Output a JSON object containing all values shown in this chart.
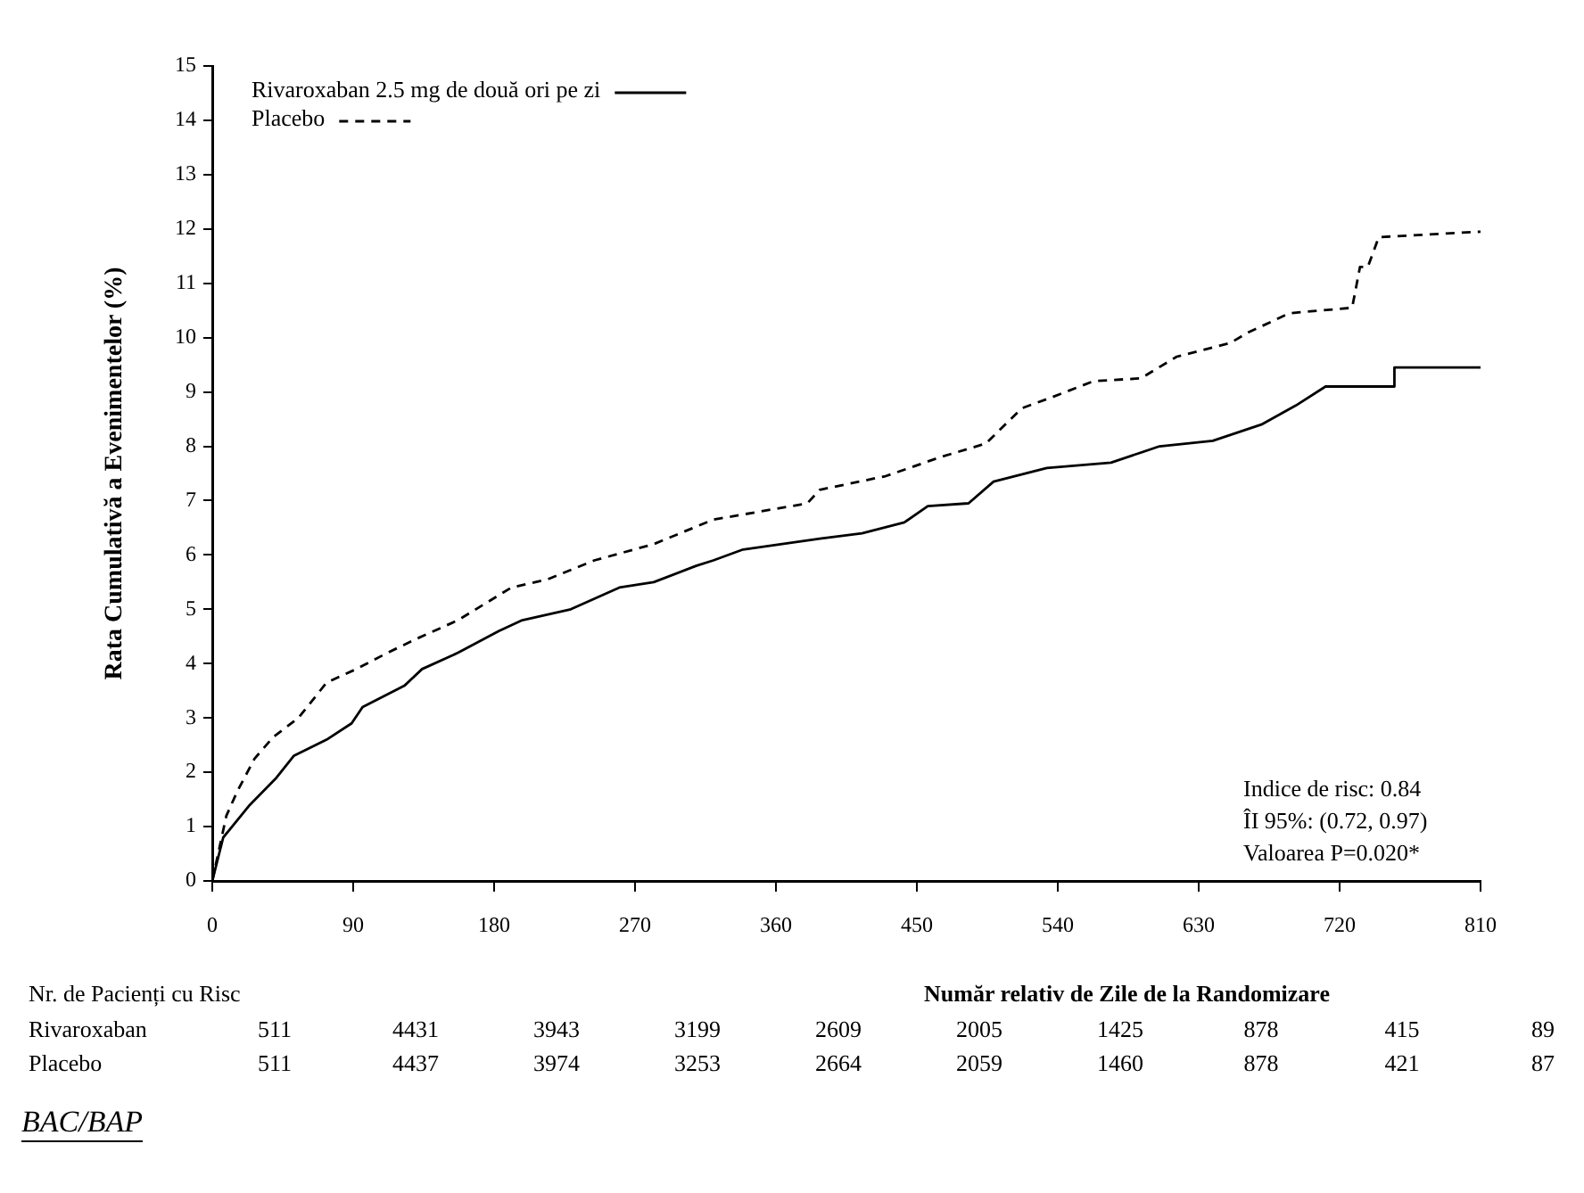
{
  "chart_data": {
    "type": "line",
    "ylabel": "Rata Cumulativă a Evenimentelor (%)",
    "xlabel": "Număr relativ de Zile de la Randomizare",
    "xlim": [
      0,
      810
    ],
    "xticks": [
      0,
      90,
      180,
      270,
      360,
      450,
      540,
      630,
      720,
      810
    ],
    "ylim": [
      0,
      15
    ],
    "yticks": [
      0,
      1,
      2,
      3,
      4,
      5,
      6,
      7,
      8,
      9,
      10,
      11,
      12,
      13,
      14,
      15
    ],
    "grid": false,
    "legend": "top left",
    "marker": "none",
    "series": [
      {
        "name": "Rivaroxaban 2.5 mg de două ori pe zi",
        "color": "#000000",
        "line_style": "solid",
        "x": [
          0,
          7,
          24,
          41,
          52,
          73,
          89,
          96,
          123,
          134,
          157,
          183,
          198,
          229,
          260,
          282,
          309,
          320,
          339,
          388,
          415,
          442,
          457,
          483,
          499,
          533,
          574,
          605,
          639,
          670,
          692,
          711,
          755,
          755,
          810
        ],
        "values": [
          0,
          0.8,
          1.4,
          1.9,
          2.3,
          2.6,
          2.9,
          3.2,
          3.6,
          3.9,
          4.2,
          4.6,
          4.8,
          5.0,
          5.4,
          5.5,
          5.8,
          5.9,
          6.1,
          6.3,
          6.4,
          6.6,
          6.9,
          6.95,
          7.35,
          7.6,
          7.7,
          8.0,
          8.1,
          8.4,
          8.75,
          9.1,
          9.1,
          9.45,
          9.45
        ]
      },
      {
        "name": "Placebo",
        "color": "#000000",
        "line_style": "dashed",
        "x": [
          0,
          9,
          16,
          27,
          39,
          55,
          73,
          92,
          112,
          130,
          157,
          191,
          214,
          244,
          282,
          320,
          380,
          388,
          430,
          465,
          494,
          517,
          536,
          563,
          593,
          616,
          650,
          662,
          688,
          728,
          733,
          738,
          745,
          810
        ],
        "values": [
          0,
          1.2,
          1.65,
          2.25,
          2.65,
          3.0,
          3.65,
          3.9,
          4.2,
          4.45,
          4.8,
          5.4,
          5.55,
          5.9,
          6.2,
          6.65,
          6.95,
          7.2,
          7.45,
          7.8,
          8.05,
          8.7,
          8.9,
          9.2,
          9.25,
          9.65,
          9.9,
          10.1,
          10.45,
          10.55,
          11.3,
          11.3,
          11.85,
          11.95
        ]
      }
    ],
    "annotations": [
      "Indice de risc: 0.84",
      "ÎI 95%: (0.72, 0.97)",
      "Valoarea P=0.020*",
      "Nr. de Pacienți cu Risc",
      "Rivaroxaban 511 4431 3943 3199 2609 2005 1425 878 415 89",
      "Placebo 511 4437 3974 3253 2664 2059 1460 878 421 87",
      "BAC/BAP"
    ]
  }
}
